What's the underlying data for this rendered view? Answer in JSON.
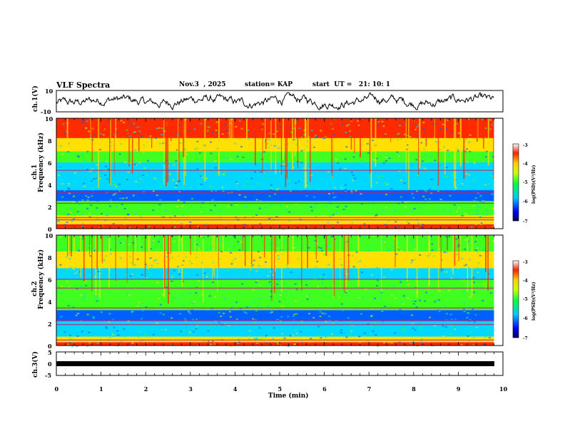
{
  "header": {
    "title": "VLF Spectra",
    "date": "Nov.3  , 2025",
    "station": "station= KAP",
    "start_ut": "start  UT =   21: 10: 1"
  },
  "chart_data": [
    {
      "type": "line",
      "name": "ch1-waveform",
      "ylabel": "ch.1(V)",
      "ylim": [
        -10,
        10
      ],
      "ytick_labels": [
        "10",
        "-10"
      ],
      "xlim": [
        0,
        10
      ],
      "description_values": "noisy waveform oscillating roughly between -7 and +7 V over 0 to 9.8 min"
    },
    {
      "type": "heatmap",
      "name": "ch1-spectrogram",
      "ylabel": "ch.1\nFrequency (kHz)",
      "ylabel_line1": "ch.1",
      "ylabel_line2": "Frequency  (kHz)",
      "ylim": [
        0,
        10
      ],
      "ytick_labels": [
        "10",
        "8",
        "6",
        "4",
        "2",
        "0"
      ],
      "xlim": [
        0,
        10
      ],
      "data_end_min": 9.8,
      "colorbar": {
        "label": "log(PSD)(V²/Hz)",
        "ticks": [
          "-3",
          "-4",
          "-5",
          "-6",
          "-7"
        ],
        "range": [
          -7,
          -3
        ]
      },
      "horizontal_lines_khz": [
        0.3,
        0.8,
        1.0,
        2.3,
        3.3,
        5.3
      ]
    },
    {
      "type": "heatmap",
      "name": "ch2-spectrogram",
      "ylabel_line1": "ch.2",
      "ylabel_line2": "Frequency  (kHz)",
      "ylim": [
        0,
        10
      ],
      "ytick_labels": [
        "10",
        "8",
        "6",
        "4",
        "2",
        "0"
      ],
      "xlim": [
        0,
        10
      ],
      "data_end_min": 9.8,
      "colorbar": {
        "label": "log(PSD)(V²/Hz)",
        "ticks": [
          "-3",
          "-4",
          "-5",
          "-6",
          "-7"
        ],
        "range": [
          -7,
          -3
        ]
      },
      "horizontal_lines_khz": [
        0.5,
        1.9,
        2.3,
        3.4,
        5.2,
        6.0
      ]
    },
    {
      "type": "line",
      "name": "ch3-signal",
      "ylabel": "ch.3(V)",
      "ylim": [
        -5,
        5
      ],
      "ytick_labels": [
        "5",
        "0",
        "-5"
      ],
      "xlim": [
        0,
        10
      ],
      "description_values": "flat thick trace at about 0 V"
    }
  ],
  "x_axis": {
    "label": "Time  (min)",
    "tick_labels": [
      "0",
      "1",
      "2",
      "3",
      "4",
      "5",
      "6",
      "7",
      "8",
      "9",
      "10"
    ]
  },
  "colors": {
    "axis": "#000000",
    "spec_hot": "#ff2a00",
    "spec_warm": "#ffe000",
    "spec_mid": "#40ff20",
    "spec_cool": "#00d8ff",
    "spec_cold": "#0060ff"
  }
}
